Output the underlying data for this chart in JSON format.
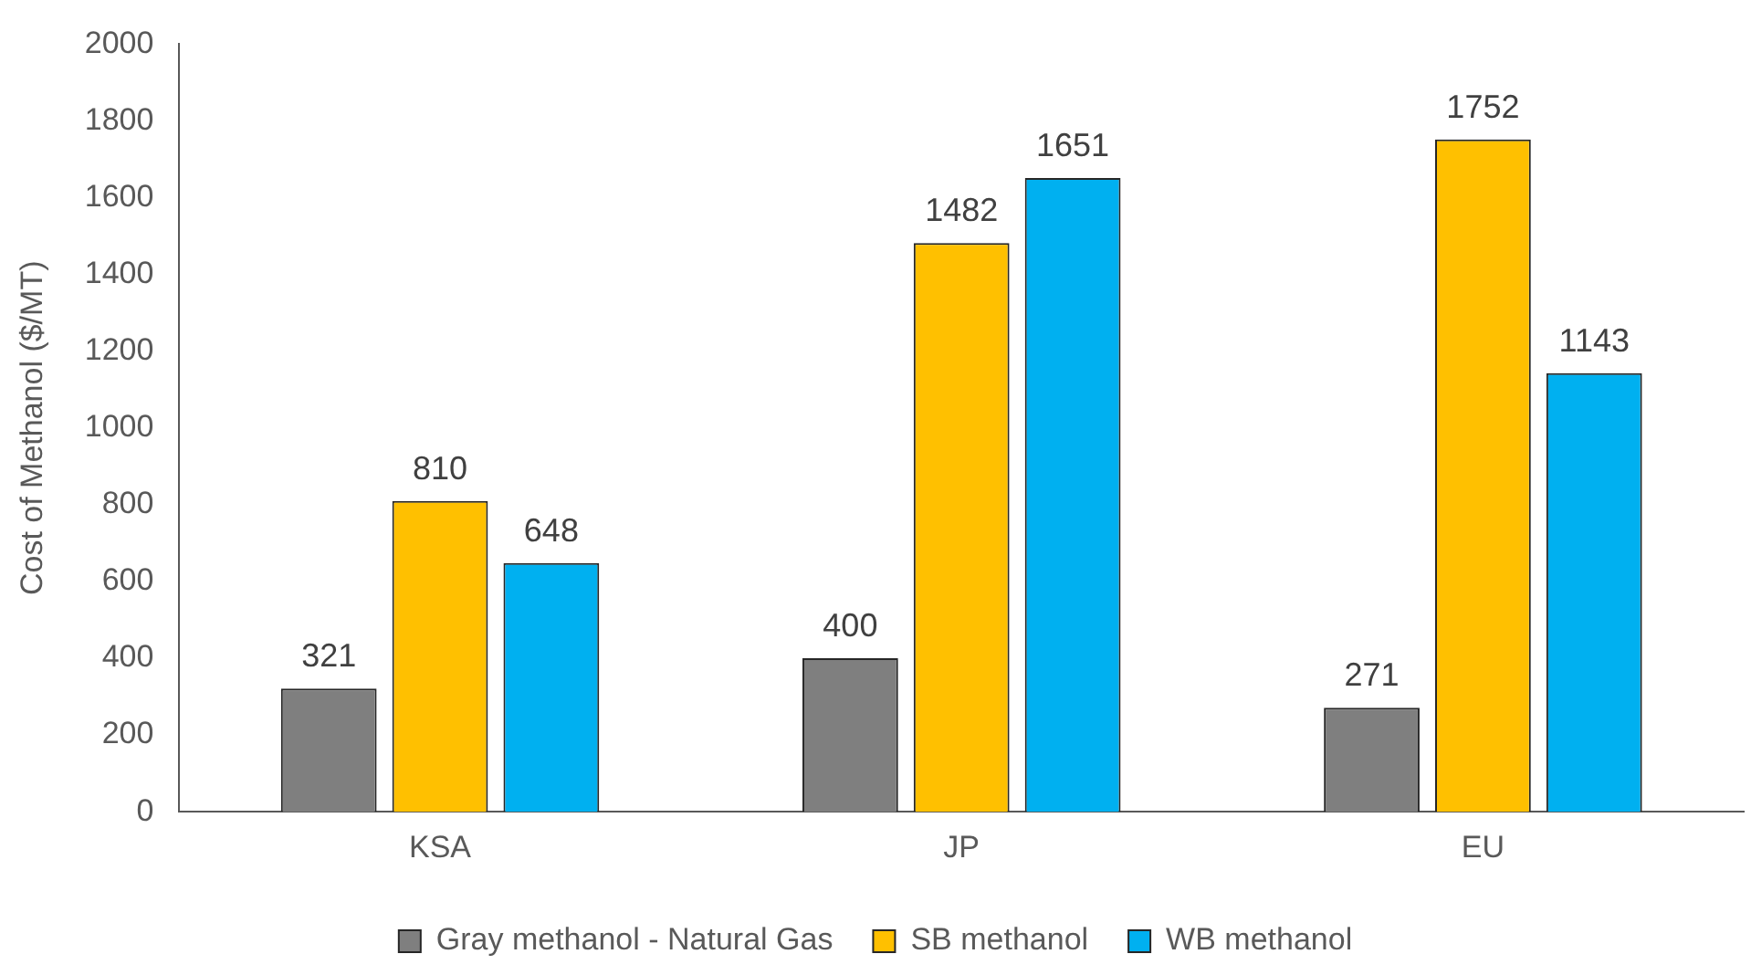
{
  "chart_data": {
    "type": "bar",
    "ylabel": "Cost of Methanol ($/MT)",
    "categories": [
      "KSA",
      "JP",
      "EU"
    ],
    "series": [
      {
        "name": "Gray methanol - Natural Gas",
        "color": "#7f7f7f",
        "values": [
          321,
          400,
          271
        ]
      },
      {
        "name": "SB methanol",
        "color": "#ffc000",
        "values": [
          810,
          1482,
          1752
        ]
      },
      {
        "name": "WB methanol",
        "color": "#00b0f0",
        "values": [
          648,
          1651,
          1143
        ]
      }
    ],
    "ylim": [
      0,
      2000
    ],
    "yticks": [
      0,
      200,
      400,
      600,
      800,
      1000,
      1200,
      1400,
      1600,
      1800,
      2000
    ],
    "grid": false,
    "legend": "bottom",
    "data_labels": true
  }
}
